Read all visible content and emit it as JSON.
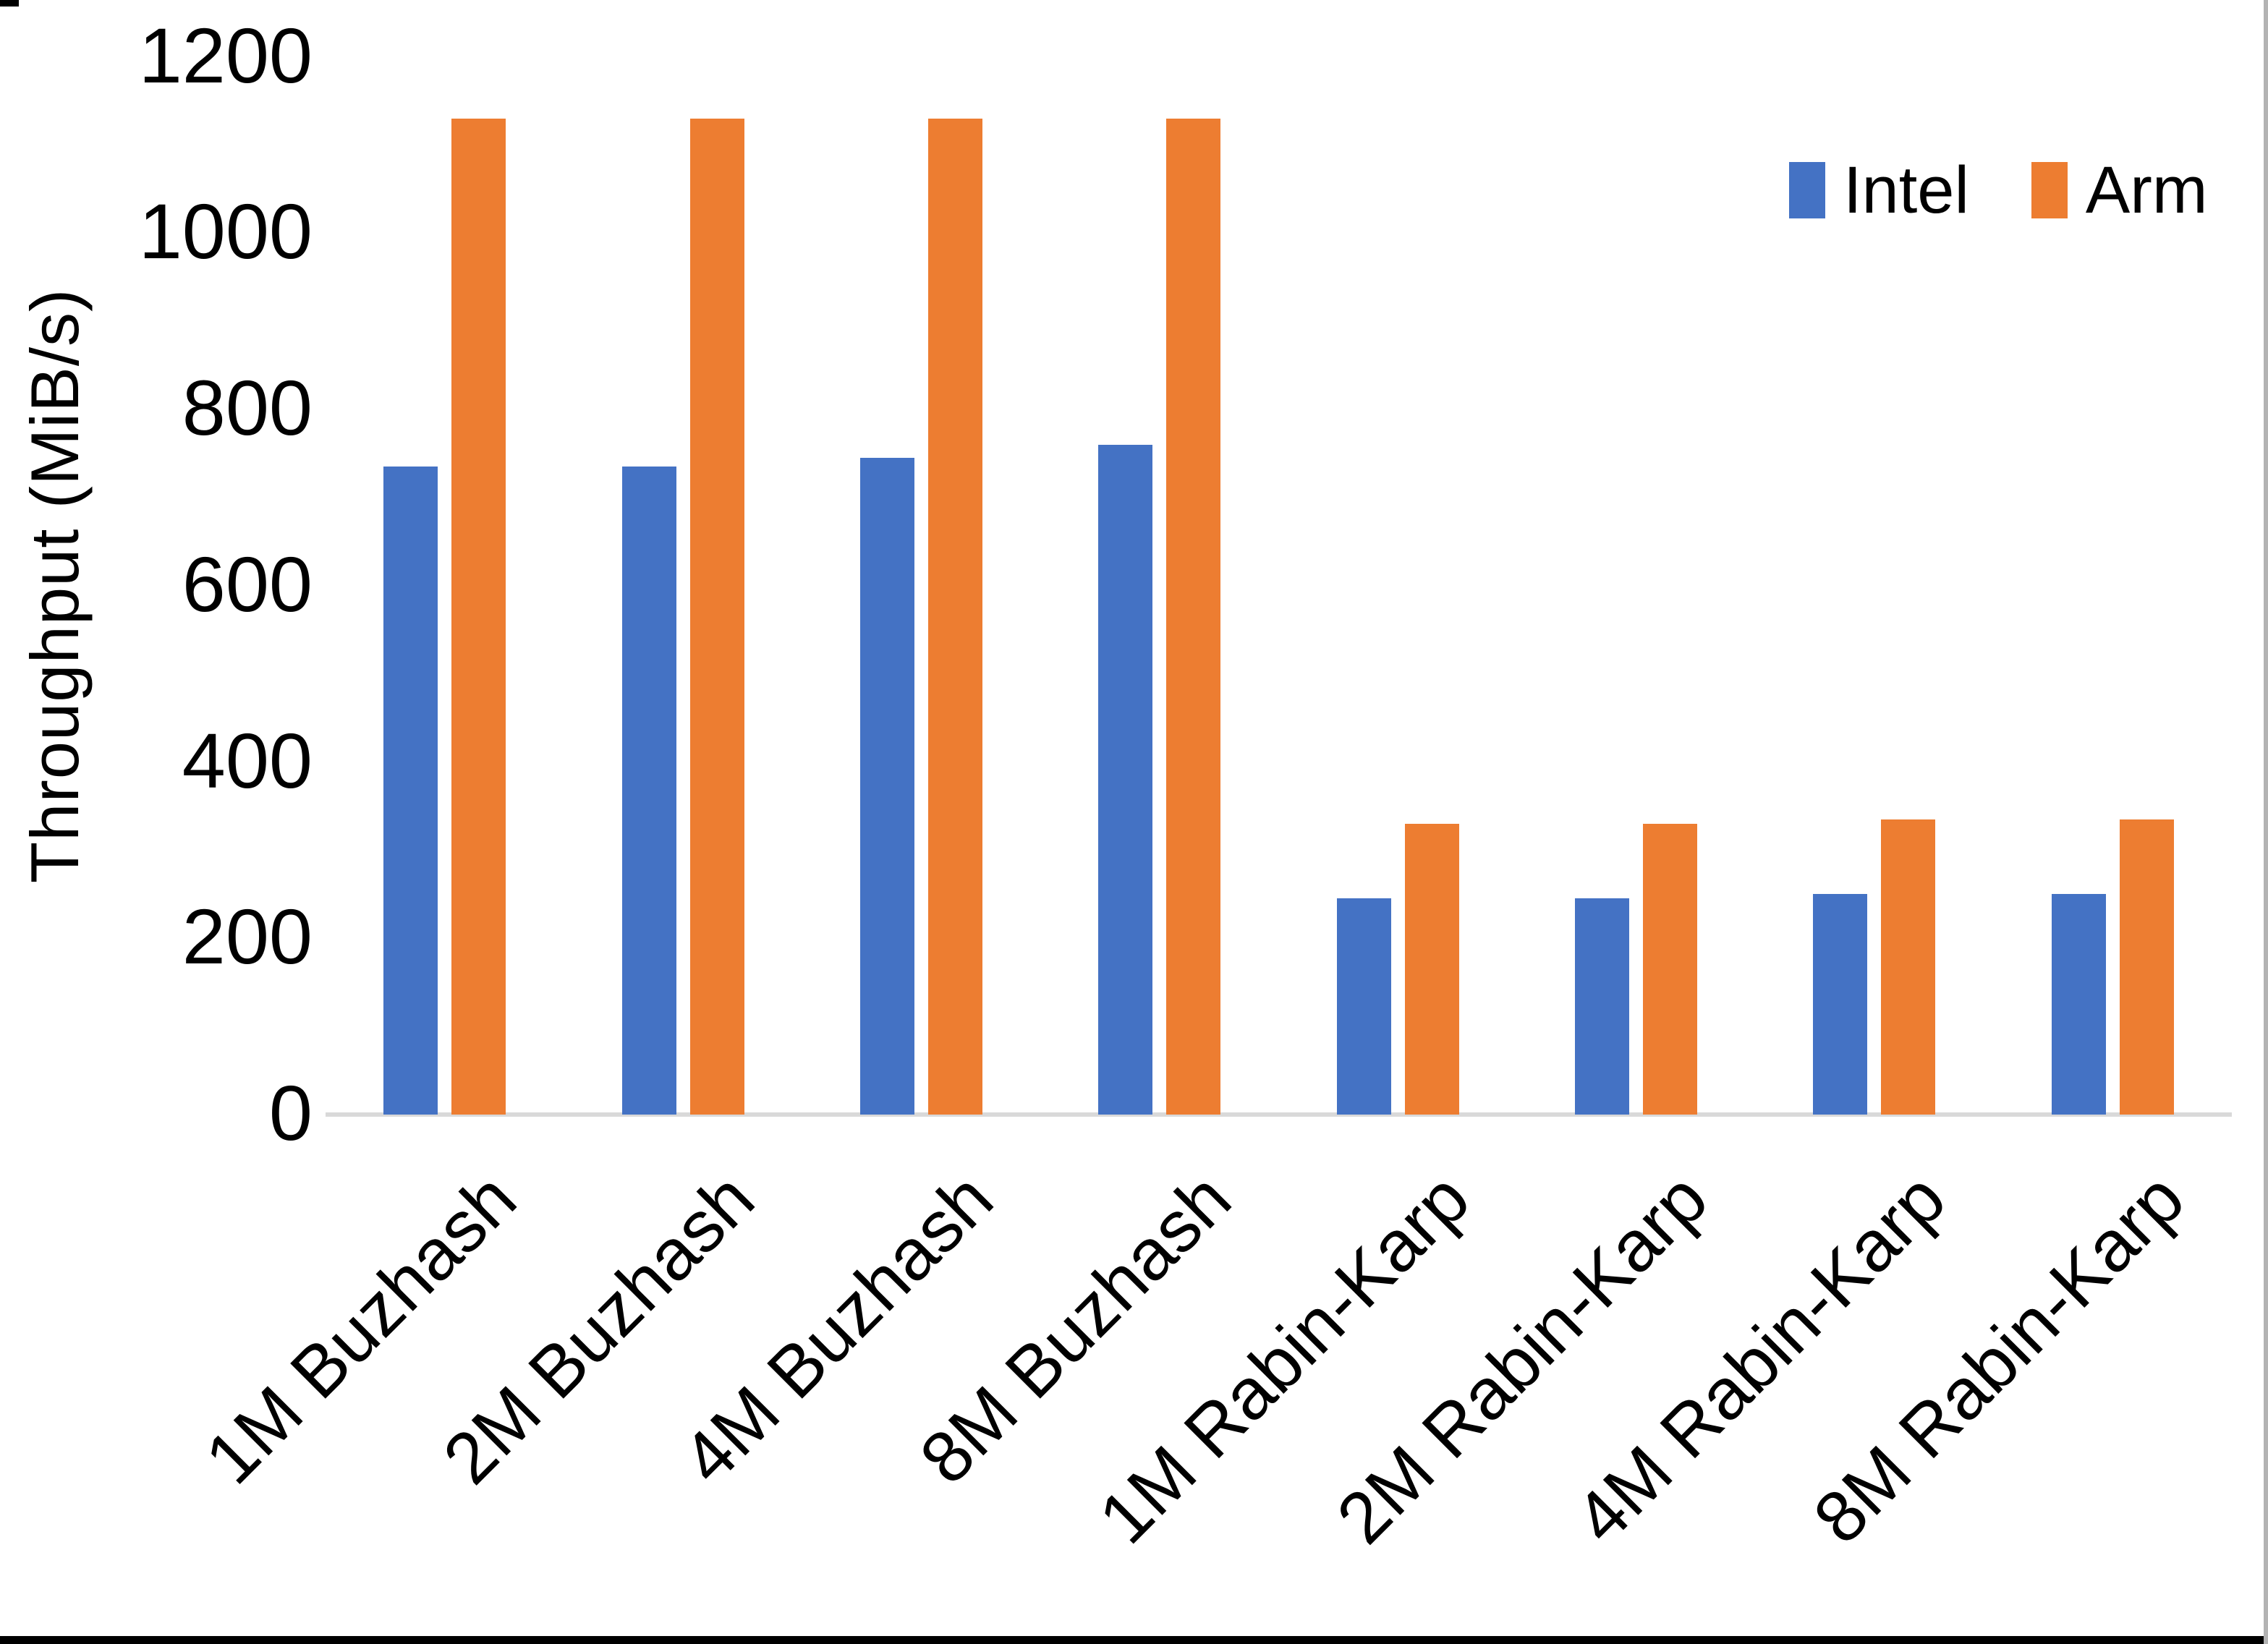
{
  "chart_data": {
    "type": "bar",
    "title": "",
    "xlabel": "",
    "ylabel": "Throughput (MiB/s)",
    "categories": [
      "1M Buzhash",
      "2M Buzhash",
      "4M Buzhash",
      "8M Buzhash",
      "1M Rabin-Karp",
      "2M Rabin-Karp",
      "4M Rabin-Karp",
      "8M Rabin-Karp"
    ],
    "series": [
      {
        "name": "Intel",
        "color": "#4472C4",
        "values": [
          735,
          735,
          745,
          760,
          245,
          245,
          250,
          250
        ]
      },
      {
        "name": "Arm",
        "color": "#ED7D31",
        "values": [
          1130,
          1130,
          1130,
          1130,
          330,
          330,
          335,
          335
        ]
      }
    ],
    "ylim": [
      0,
      1200
    ],
    "yticks": [
      0,
      200,
      400,
      600,
      800,
      1000,
      1200
    ],
    "grid": false,
    "legend_position": "top-right",
    "axis_line_color": "#D9D9D9",
    "text_color": "#000000"
  }
}
